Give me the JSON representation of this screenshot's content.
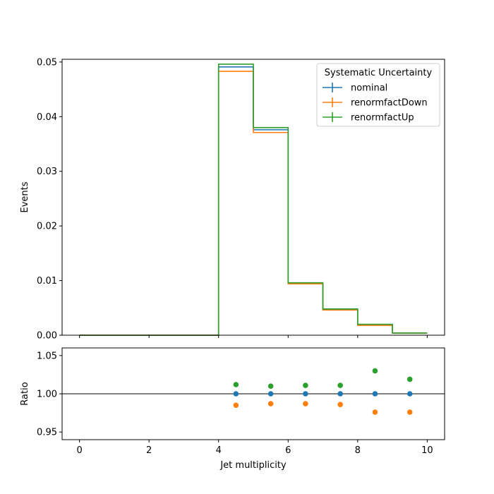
{
  "chart_data": [
    {
      "type": "line",
      "style": "step-histogram",
      "xlabel": "",
      "ylabel": "Events",
      "xlim": [
        -0.5,
        10.5
      ],
      "ylim": [
        0,
        0.0505
      ],
      "bin_edges": [
        0,
        1,
        2,
        3,
        4,
        5,
        6,
        7,
        8,
        9,
        10
      ],
      "x_ticks": [
        0,
        2,
        4,
        6,
        8,
        10
      ],
      "y_ticks": [
        "0.00",
        "0.01",
        "0.02",
        "0.03",
        "0.04",
        "0.05"
      ],
      "y_tick_values": [
        0,
        0.01,
        0.02,
        0.03,
        0.04,
        0.05
      ],
      "legend": {
        "title": "Systematic Uncertainty",
        "placement": "top-right"
      },
      "series": [
        {
          "name": "nominal",
          "color": "#1f77b4",
          "values": [
            0,
            0,
            0,
            0,
            0.0491,
            0.0376,
            0.0095,
            0.0047,
            0.0019,
            0.0004
          ]
        },
        {
          "name": "renormfactDown",
          "color": "#ff7f0e",
          "values": [
            0,
            0,
            0,
            0,
            0.0483,
            0.0371,
            0.0094,
            0.0046,
            0.0018,
            0.0004
          ]
        },
        {
          "name": "renormfactUp",
          "color": "#2ca02c",
          "values": [
            0,
            0,
            0,
            0,
            0.0496,
            0.038,
            0.0096,
            0.0048,
            0.002,
            0.0004
          ]
        }
      ]
    },
    {
      "type": "scatter",
      "xlabel": "Jet multiplicity",
      "ylabel": "Ratio",
      "xlim": [
        -0.5,
        10.5
      ],
      "ylim": [
        0.94,
        1.06
      ],
      "x_ticks": [
        0,
        2,
        4,
        6,
        8,
        10
      ],
      "y_ticks": [
        "0.95",
        "1.00",
        "1.05"
      ],
      "y_tick_values": [
        0.95,
        1.0,
        1.05
      ],
      "reference_line": 1.0,
      "x": [
        4.5,
        5.5,
        6.5,
        7.5,
        8.5,
        9.5
      ],
      "series": [
        {
          "name": "nominal",
          "color": "#1f77b4",
          "values": [
            1.0,
            1.0,
            1.0,
            1.0,
            1.0,
            1.0
          ]
        },
        {
          "name": "renormfactDown",
          "color": "#ff7f0e",
          "values": [
            0.985,
            0.987,
            0.987,
            0.986,
            0.976,
            0.976
          ]
        },
        {
          "name": "renormfactUp",
          "color": "#2ca02c",
          "values": [
            1.012,
            1.01,
            1.011,
            1.011,
            1.03,
            1.019
          ]
        }
      ]
    }
  ]
}
